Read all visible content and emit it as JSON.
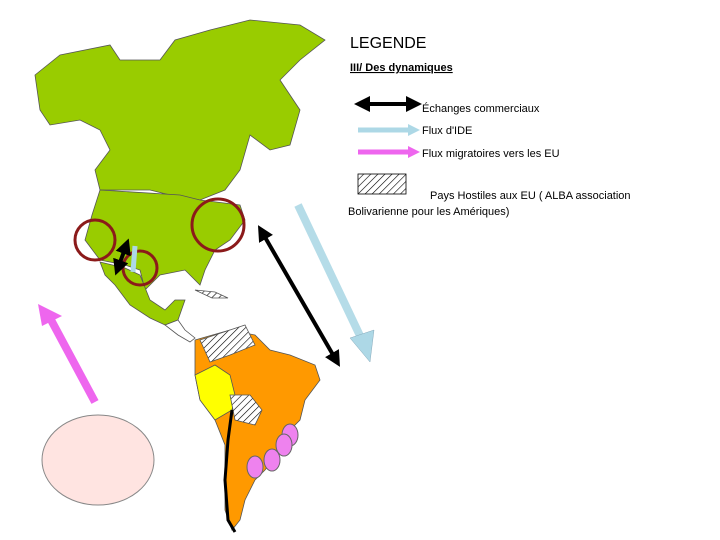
{
  "legend": {
    "title": "LEGENDE",
    "subtitle": "III/ Des dynamiques",
    "items": [
      {
        "label": "Échanges commerciaux"
      },
      {
        "label": "Flux d'IDE"
      },
      {
        "label": "Flux migratoires vers les EU"
      },
      {
        "label_lines": [
          "Pays Hostiles aux EU ( ALBA association",
          "Bolivarienne pour les Amériques)"
        ]
      }
    ]
  }
}
